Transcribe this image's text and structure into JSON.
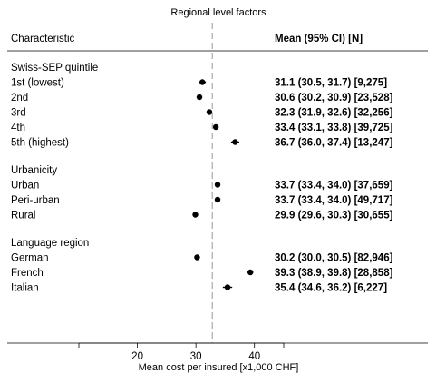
{
  "chart_data": {
    "type": "forest",
    "title": "Regional level factors",
    "col_left_header": "Characteristic",
    "col_right_header": "Mean (95% CI) [N]",
    "reference_line": 32.8,
    "xlim": [
      10,
      45
    ],
    "xticks": [
      20,
      30,
      40
    ],
    "xlabel": "Mean cost per insured [x1,000 CHF]",
    "groups": [
      {
        "name": "Swiss-SEP quintile",
        "rows": [
          {
            "label": "1st (lowest)",
            "mean": 31.1,
            "lo": 30.5,
            "hi": 31.7,
            "text": "31.1 (30.5, 31.7) [9,275]"
          },
          {
            "label": "2nd",
            "mean": 30.6,
            "lo": 30.2,
            "hi": 30.9,
            "text": "30.6 (30.2, 30.9) [23,528]"
          },
          {
            "label": "3rd",
            "mean": 32.3,
            "lo": 31.9,
            "hi": 32.6,
            "text": "32.3 (31.9, 32.6) [32,256]"
          },
          {
            "label": "4th",
            "mean": 33.4,
            "lo": 33.1,
            "hi": 33.8,
            "text": "33.4 (33.1, 33.8) [39,725]"
          },
          {
            "label": "5th (highest)",
            "mean": 36.7,
            "lo": 36.0,
            "hi": 37.4,
            "text": "36.7 (36.0, 37.4) [13,247]"
          }
        ]
      },
      {
        "name": "Urbanicity",
        "rows": [
          {
            "label": "Urban",
            "mean": 33.7,
            "lo": 33.4,
            "hi": 34.0,
            "text": "33.7 (33.4, 34.0) [37,659]"
          },
          {
            "label": "Peri-urban",
            "mean": 33.7,
            "lo": 33.4,
            "hi": 34.0,
            "text": "33.7 (33.4, 34.0) [49,717]"
          },
          {
            "label": "Rural",
            "mean": 29.9,
            "lo": 29.6,
            "hi": 30.3,
            "text": "29.9 (29.6, 30.3) [30,655]"
          }
        ]
      },
      {
        "name": "Language region",
        "rows": [
          {
            "label": "German",
            "mean": 30.2,
            "lo": 30.0,
            "hi": 30.5,
            "text": "30.2 (30.0, 30.5) [82,946]"
          },
          {
            "label": "French",
            "mean": 39.3,
            "lo": 38.9,
            "hi": 39.8,
            "text": "39.3 (38.9, 39.8) [28,858]"
          },
          {
            "label": "Italian",
            "mean": 35.4,
            "lo": 34.6,
            "hi": 36.2,
            "text": "35.4 (34.6, 36.2) [6,227]"
          }
        ]
      }
    ]
  }
}
